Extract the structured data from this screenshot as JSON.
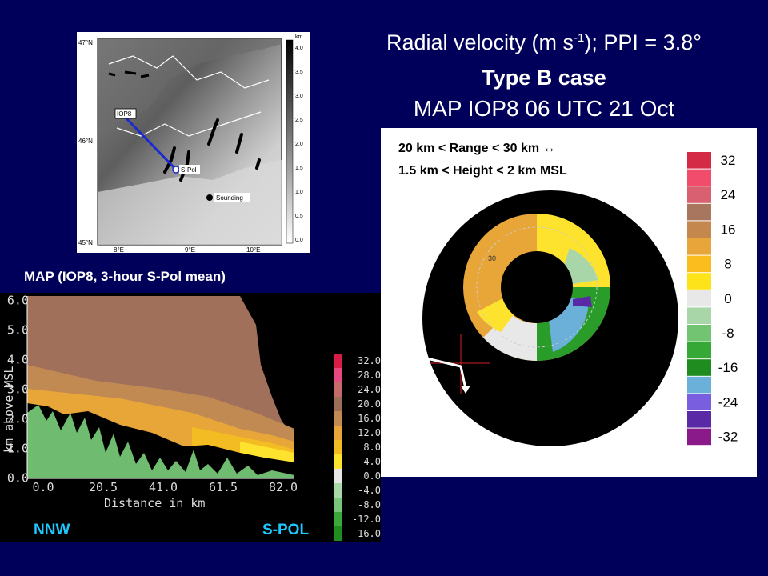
{
  "title": {
    "line1_prefix": "Radial velocity (m s",
    "line1_sup": "-1",
    "line1_suffix": "); PPI = 3.8°",
    "line2": "Type B case",
    "line3": "MAP IOP8 06 UTC 21 Oct"
  },
  "map": {
    "lat_labels": [
      "47°N",
      "46°N",
      "45°N"
    ],
    "lon_labels": [
      "8°E",
      "9°E",
      "10°E"
    ],
    "iop_label": "IOP8",
    "spol_label": "S-Pol",
    "legend_sounding": "Sounding",
    "colorbar_unit": "km",
    "colorbar_ticks": [
      "4.0",
      "3.5",
      "3.0",
      "2.5",
      "2.0",
      "1.5",
      "1.0",
      "0.5",
      "0.0"
    ]
  },
  "section": {
    "caption": "MAP (IOP8, 3-hour S-Pol mean)",
    "y_axis_label": "km above MSL",
    "x_axis_label": "Distance in km",
    "y_ticks": [
      "6.0",
      "5.0",
      "4.0",
      "3.0",
      "2.0",
      "1.0",
      "0.0"
    ],
    "x_ticks": [
      "0.0",
      "20.5",
      "41.0",
      "61.5",
      "82.0"
    ],
    "left_label": "NNW",
    "right_label": "S-POL",
    "colorbar": [
      {
        "label": "32.0",
        "color": "#d81c44"
      },
      {
        "label": "28.0",
        "color": "#e84a80"
      },
      {
        "label": "24.0",
        "color": "#c46a6a"
      },
      {
        "label": "20.0",
        "color": "#9c6e55"
      },
      {
        "label": "16.0",
        "color": "#c08a52"
      },
      {
        "label": "12.0",
        "color": "#e8a638"
      },
      {
        "label": "8.0",
        "color": "#f2bc22"
      },
      {
        "label": "4.0",
        "color": "#fde22e"
      },
      {
        "label": "0.0",
        "color": "#e6e6e6"
      },
      {
        "label": "-4.0",
        "color": "#a8d8a8"
      },
      {
        "label": "-8.0",
        "color": "#78c478"
      },
      {
        "label": "-12.0",
        "color": "#3aa83a"
      },
      {
        "label": "-16.0",
        "color": "#1e8c1e"
      }
    ]
  },
  "ppi": {
    "label_line1": "20 km < Range < 30 km ↔",
    "label_line2": "1.5 km < Height < 2 km MSL",
    "range_ring_label": "30",
    "colorbar": [
      {
        "label": "32",
        "color": "#d42a46"
      },
      {
        "label": "",
        "color": "#f24c6c"
      },
      {
        "label": "24",
        "color": "#d86070"
      },
      {
        "label": "",
        "color": "#a8765e"
      },
      {
        "label": "16",
        "color": "#c4884e"
      },
      {
        "label": "",
        "color": "#e8a63a"
      },
      {
        "label": "8",
        "color": "#fbbc1e"
      },
      {
        "label": "",
        "color": "#fde31a"
      },
      {
        "label": "0",
        "color": "#e8e8e8"
      },
      {
        "label": "",
        "color": "#a8d6a8"
      },
      {
        "label": "-8",
        "color": "#72c472"
      },
      {
        "label": "",
        "color": "#36a836"
      },
      {
        "label": "-16",
        "color": "#1e8c1e"
      },
      {
        "label": "",
        "color": "#6ab0d8"
      },
      {
        "label": "-24",
        "color": "#7a5ee0"
      },
      {
        "label": "",
        "color": "#5a2aa6"
      },
      {
        "label": "-32",
        "color": "#8a1a8a"
      }
    ]
  }
}
